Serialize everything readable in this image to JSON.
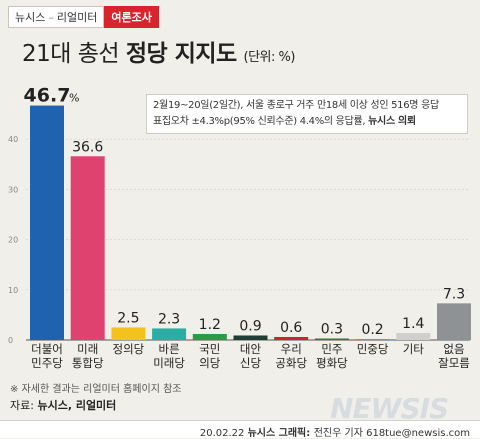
{
  "header": {
    "brand_left": "뉴시스",
    "brand_right": "리얼미터",
    "tag": "여론조사"
  },
  "title": {
    "prefix": "21대 총선 ",
    "bold": "정당 지지도",
    "unit": "(단위: %)"
  },
  "note": {
    "line1": "2월19~20일(2일간), 서울 종로구 거주 만18세 이상 성인 516명 응답",
    "line2_prefix": "표집오차 ±4.3%p(95% 신뢰수준) 4.4%의 응답률, ",
    "line2_bold": "뉴시스 의뢰"
  },
  "footnote": "※ 자세한 결과는 리얼미터 홈페이지 참조",
  "source": {
    "label": "자료: ",
    "value": "뉴시스, 리얼미터"
  },
  "credit": {
    "date": "20.02.22 ",
    "bold": "뉴시스 그래픽: ",
    "rest": "전진우 기자 618tue@newsis.com"
  },
  "watermark": "NEWSIS",
  "chart_data": {
    "type": "bar",
    "title": "21대 총선 정당 지지도",
    "ylabel": "(단위: %)",
    "ylim": [
      0,
      50
    ],
    "yticks": [
      0,
      10,
      20,
      30,
      40
    ],
    "categories": [
      [
        "더불어",
        "민주당"
      ],
      [
        "미래",
        "통합당"
      ],
      [
        "정의당"
      ],
      [
        "바른",
        "미래당"
      ],
      [
        "국민",
        "의당"
      ],
      [
        "대안",
        "신당"
      ],
      [
        "우리",
        "공화당"
      ],
      [
        "민주",
        "평화당"
      ],
      [
        "민중당"
      ],
      [
        "기타"
      ],
      [
        "없음",
        "잘모름"
      ]
    ],
    "values": [
      46.7,
      36.6,
      2.5,
      2.3,
      1.2,
      0.9,
      0.6,
      0.3,
      0.2,
      1.4,
      7.3
    ],
    "value_labels": [
      "46.7",
      "36.6",
      "2.5",
      "2.3",
      "1.2",
      "0.9",
      "0.6",
      "0.3",
      "0.2",
      "1.4",
      "7.3"
    ],
    "highlight_unit": "%",
    "colors": [
      "#1f63b0",
      "#e0426f",
      "#f4c21c",
      "#2aada2",
      "#2c9b45",
      "#1e3e36",
      "#c8262e",
      "#2d7b3b",
      "#e2762a",
      "#cfcfcf",
      "#8f9294"
    ]
  }
}
